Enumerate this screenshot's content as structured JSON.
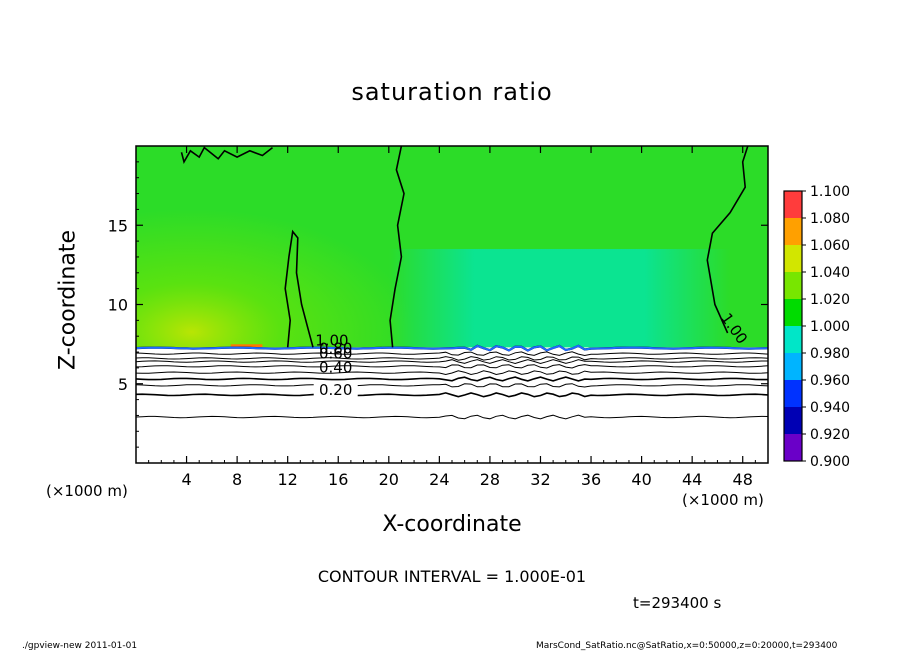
{
  "chart_data": {
    "type": "heatmap",
    "title": "saturation ratio",
    "xlabel": "X-coordinate",
    "ylabel": "Z-coordinate",
    "x_unit_left": "(×1000 m)",
    "x_unit_right": "(×1000 m)",
    "xlim": [
      0,
      50
    ],
    "ylim": [
      0,
      20
    ],
    "x_ticks": [
      4,
      8,
      12,
      16,
      20,
      24,
      28,
      32,
      36,
      40,
      44,
      48
    ],
    "y_ticks": [
      5,
      10,
      15
    ],
    "colorbar": {
      "levels": [
        0.9,
        0.92,
        0.94,
        0.96,
        0.98,
        1.0,
        1.02,
        1.04,
        1.06,
        1.08,
        1.1
      ],
      "labels": [
        "0.900",
        "0.920",
        "0.940",
        "0.960",
        "0.980",
        "1.000",
        "1.020",
        "1.040",
        "1.060",
        "1.080",
        "1.100"
      ],
      "colors": [
        "#6a00c8",
        "#0000b4",
        "#0032ff",
        "#00b4ff",
        "#00e6c8",
        "#00dc00",
        "#78e600",
        "#d2e600",
        "#ffa000",
        "#ff3c3c",
        "#ff9696"
      ]
    },
    "saturated_layer_top_z": 7.3,
    "contour_labels": [
      {
        "text": "1.00",
        "x": 15.5,
        "z": 7.4
      },
      {
        "text": "0.80",
        "x": 15.8,
        "z": 6.9
      },
      {
        "text": "0.60",
        "x": 15.8,
        "z": 6.6
      },
      {
        "text": "0.40",
        "x": 15.8,
        "z": 5.7
      },
      {
        "text": "0.20",
        "x": 15.8,
        "z": 4.3
      },
      {
        "text": "1.00",
        "x": 47,
        "z": 8.3
      }
    ],
    "contour_levels_dry_layer": [
      0.1,
      0.2,
      0.3,
      0.4,
      0.5,
      0.6,
      0.7,
      0.8,
      0.9
    ],
    "contour_z_dry_layer": [
      2.9,
      4.3,
      4.9,
      5.3,
      5.7,
      6.1,
      6.4,
      6.6,
      6.9
    ]
  },
  "contour_interval": "CONTOUR INTERVAL = 1.000E-01",
  "time_label": "t=293400 s",
  "footer_left": "./gpview-new  2011-01-01",
  "footer_right": "MarsCond_SatRatio.nc@SatRatio,x=0:50000,z=0:20000,t=293400"
}
